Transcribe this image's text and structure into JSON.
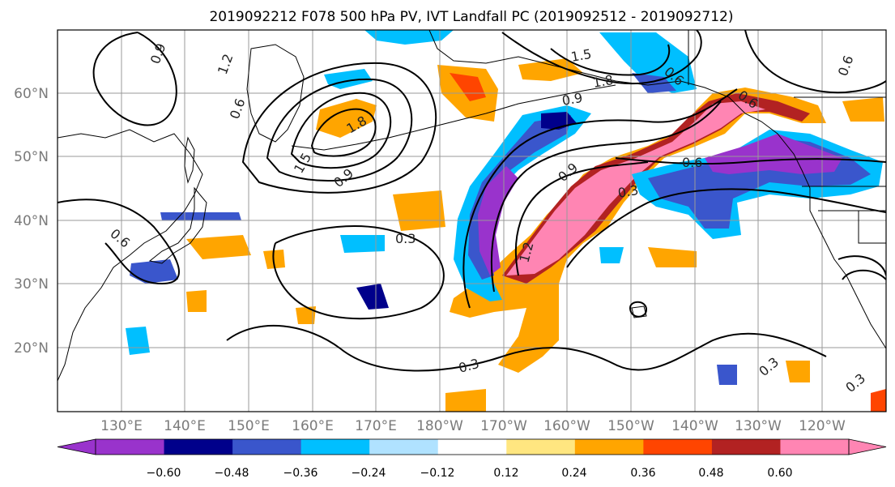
{
  "title": "2019092212 F078 500 hPa PV, IVT Landfall PC (2019092512 - 2019092712)",
  "lat_labels": [
    "60°N",
    "50°N",
    "40°N",
    "30°N",
    "20°N"
  ],
  "lon_labels": [
    "130°E",
    "140°E",
    "150°E",
    "160°E",
    "170°E",
    "180°W",
    "170°W",
    "160°W",
    "150°W",
    "140°W",
    "130°W",
    "120°W"
  ],
  "contour_labels": [
    "0.9",
    "1.2",
    "0.6",
    "1.5",
    "1.8",
    "0.9",
    "1.5",
    "1.8",
    "0.6",
    "0.9",
    "0.6",
    "0.6",
    "0.9",
    "0.3",
    "0.3",
    "0.3",
    "0.6",
    "1.2",
    "0.3",
    "0.3",
    "0.6"
  ],
  "colorbar": {
    "ticks": [
      "−0.60",
      "−0.48",
      "−0.36",
      "−0.24",
      "−0.12",
      "0.12",
      "0.24",
      "0.36",
      "0.48",
      "0.60"
    ],
    "colors": [
      "#9933cc",
      "#00008b",
      "#3a56cc",
      "#00bfff",
      "#b0e2ff",
      "#ffffff",
      "#ffe680",
      "#ffa500",
      "#ff4500",
      "#b22222",
      "#ff85b3"
    ]
  }
}
